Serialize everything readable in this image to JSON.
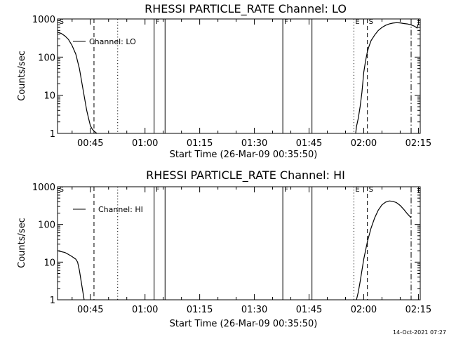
{
  "footer": {
    "timestamp": "14-Oct-2021 07:27"
  },
  "chart_data": [
    {
      "type": "line",
      "title": "RHESSI PARTICLE_RATE Channel: LO",
      "xlabel": "Start Time (26-Mar-09 00:35:50)",
      "ylabel": "Counts/sec",
      "xlim_min": [
        36.0,
        135.5
      ],
      "ylim": [
        1,
        1000
      ],
      "yscale": "log",
      "x_ticks": [
        {
          "label": "00:45",
          "min": 45
        },
        {
          "label": "01:00",
          "min": 60
        },
        {
          "label": "01:15",
          "min": 75
        },
        {
          "label": "01:30",
          "min": 90
        },
        {
          "label": "01:45",
          "min": 105
        },
        {
          "label": "02:00",
          "min": 120
        },
        {
          "label": "02:15",
          "min": 135
        }
      ],
      "y_ticks": [
        {
          "label": "1",
          "v": 1
        },
        {
          "label": "10",
          "v": 10
        },
        {
          "label": "100",
          "v": 100
        },
        {
          "label": "1000",
          "v": 1000
        }
      ],
      "legend": {
        "label": "Channel: LO",
        "position": "top-left"
      },
      "series": [
        {
          "segments": [
            {
              "x": [
                36.0,
                37.0,
                38.0,
                39.0,
                40.0,
                41.0,
                42.0,
                43.0,
                44.0,
                44.5,
                45.0,
                45.5,
                46.0,
                46.5,
                46.8
              ],
              "y": [
                450,
                420,
                360,
                290,
                200,
                120,
                50,
                14,
                4.0,
                2.5,
                1.6,
                1.3,
                1.15,
                1.05,
                1.0
              ]
            },
            {
              "x": [
                117.8,
                118.0,
                118.5,
                119.0,
                119.5,
                120.0,
                120.5,
                121.0,
                121.5,
                122.0,
                123.0,
                124.0,
                125.0,
                126.0,
                127.0,
                128.0,
                129.0,
                130.0,
                131.0,
                132.0,
                133.0,
                134.0,
                134.6,
                134.8,
                135.0
              ],
              "y": [
                1.0,
                1.5,
                2.5,
                5,
                12,
                40,
                80,
                140,
                200,
                270,
                380,
                500,
                600,
                680,
                740,
                780,
                800,
                790,
                760,
                740,
                700,
                640,
                580,
                680,
                740
              ]
            }
          ]
        }
      ],
      "markers": [
        {
          "type": "dashed",
          "min": 46.0,
          "label": ""
        },
        {
          "type": "dotted",
          "min": 52.5,
          "label": ""
        },
        {
          "type": "solid",
          "min": 62.5,
          "label": "F"
        },
        {
          "type": "solid",
          "min": 65.5,
          "label": ""
        },
        {
          "type": "solid",
          "min": 97.8,
          "label": "F"
        },
        {
          "type": "solid",
          "min": 105.8,
          "label": ""
        },
        {
          "type": "dotted",
          "min": 117.3,
          "label": "E"
        },
        {
          "type": "dashed",
          "min": 121.0,
          "label": "S"
        },
        {
          "type": "dashdot",
          "min": 133.0,
          "label": ""
        }
      ],
      "corner_labels": [
        {
          "label": "S",
          "min": 36.5
        }
      ]
    },
    {
      "type": "line",
      "title": "RHESSI PARTICLE_RATE Channel: HI",
      "xlabel": "Start Time (26-Mar-09 00:35:50)",
      "ylabel": "Counts/sec",
      "xlim_min": [
        36.0,
        135.5
      ],
      "ylim": [
        1,
        1000
      ],
      "yscale": "log",
      "x_ticks": [
        {
          "label": "00:45",
          "min": 45
        },
        {
          "label": "01:00",
          "min": 60
        },
        {
          "label": "01:15",
          "min": 75
        },
        {
          "label": "01:30",
          "min": 90
        },
        {
          "label": "01:45",
          "min": 105
        },
        {
          "label": "02:00",
          "min": 120
        },
        {
          "label": "02:15",
          "min": 135
        }
      ],
      "y_ticks": [
        {
          "label": "1",
          "v": 1
        },
        {
          "label": "10",
          "v": 10
        },
        {
          "label": "100",
          "v": 100
        },
        {
          "label": "1000",
          "v": 1000
        }
      ],
      "legend": {
        "label": "Channel: HI",
        "position": "top-left"
      },
      "series": [
        {
          "segments": [
            {
              "x": [
                36.0,
                37.0,
                38.0,
                39.0,
                40.0,
                41.0,
                41.5,
                42.0,
                42.5,
                43.0,
                43.3
              ],
              "y": [
                20,
                19,
                18,
                16,
                14,
                12,
                10,
                6,
                3,
                1.5,
                1.0
              ]
            },
            {
              "x": [
                118.0,
                118.5,
                119.0,
                119.5,
                120.0,
                121.0,
                122.0,
                123.0,
                124.0,
                125.0,
                126.0,
                127.0,
                128.0,
                129.0,
                130.0,
                131.0,
                132.0,
                133.0
              ],
              "y": [
                1.0,
                1.6,
                3,
                6,
                12,
                35,
                80,
                150,
                240,
                330,
                390,
                420,
                410,
                380,
                320,
                250,
                190,
                150
              ]
            }
          ]
        }
      ],
      "markers": [
        {
          "type": "dashed",
          "min": 46.0,
          "label": ""
        },
        {
          "type": "dotted",
          "min": 52.5,
          "label": ""
        },
        {
          "type": "solid",
          "min": 62.5,
          "label": "F"
        },
        {
          "type": "solid",
          "min": 65.5,
          "label": ""
        },
        {
          "type": "solid",
          "min": 97.8,
          "label": "F"
        },
        {
          "type": "solid",
          "min": 105.8,
          "label": ""
        },
        {
          "type": "dotted",
          "min": 117.3,
          "label": "E"
        },
        {
          "type": "dashed",
          "min": 121.0,
          "label": "S"
        },
        {
          "type": "dashdot",
          "min": 133.0,
          "label": ""
        }
      ],
      "corner_labels": [
        {
          "label": "S",
          "min": 36.5
        }
      ]
    }
  ]
}
